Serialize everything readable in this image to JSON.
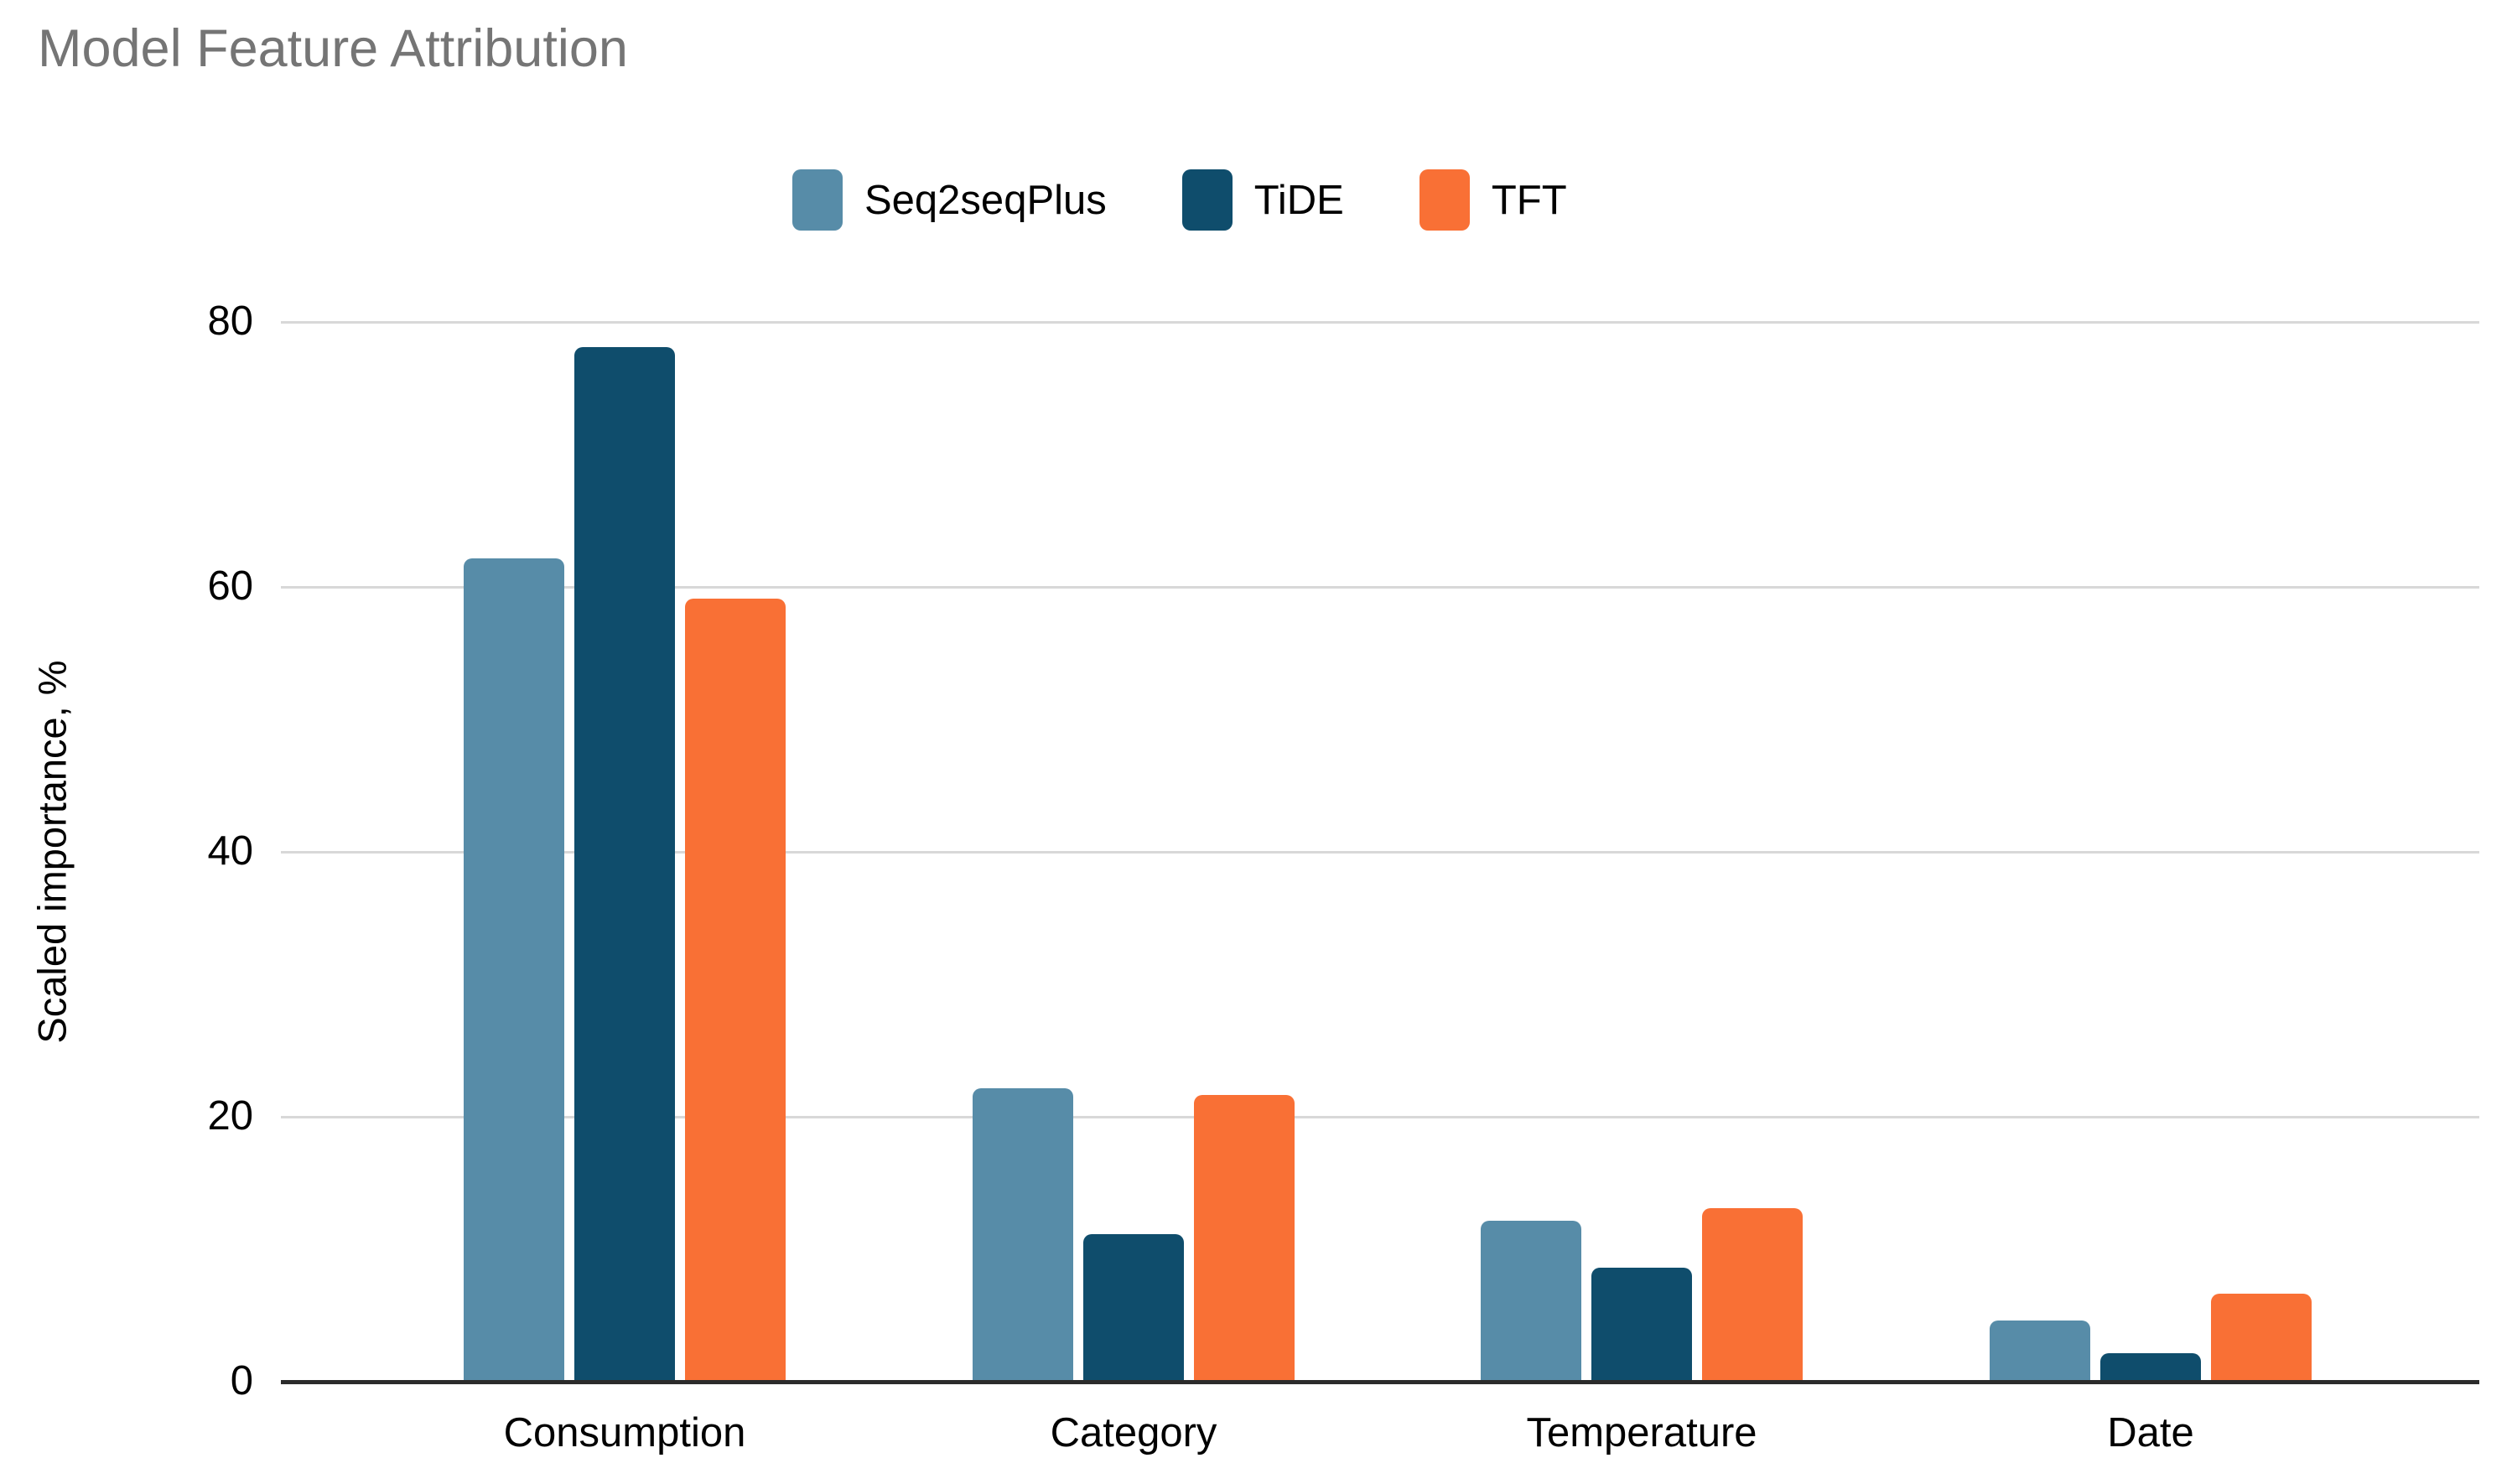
{
  "title": "Model Feature Attribution",
  "chart_data": {
    "type": "bar",
    "title": "Model Feature Attribution",
    "categories": [
      "Consumption",
      "Category",
      "Temperature",
      "Date"
    ],
    "series": [
      {
        "name": "Seq2seqPlus",
        "color": "#578CA8",
        "values": [
          62,
          22,
          12,
          4.5
        ]
      },
      {
        "name": "TiDE",
        "color": "#0F4D6C",
        "values": [
          78,
          11,
          8.5,
          2
        ]
      },
      {
        "name": "TFT",
        "color": "#F97035",
        "values": [
          59,
          21.5,
          13,
          6.5
        ]
      }
    ],
    "xlabel": "",
    "ylabel": "Scaled importance, %",
    "ylim": [
      0,
      80
    ],
    "yticks": [
      0,
      20,
      40,
      60,
      80
    ],
    "grid": true,
    "legend_position": "top"
  },
  "colors": {
    "title_text": "#757575",
    "axis_text": "#000000",
    "gridline": "#D8D8D8",
    "baseline": "#2B2B2B",
    "background": "#FFFFFF"
  }
}
